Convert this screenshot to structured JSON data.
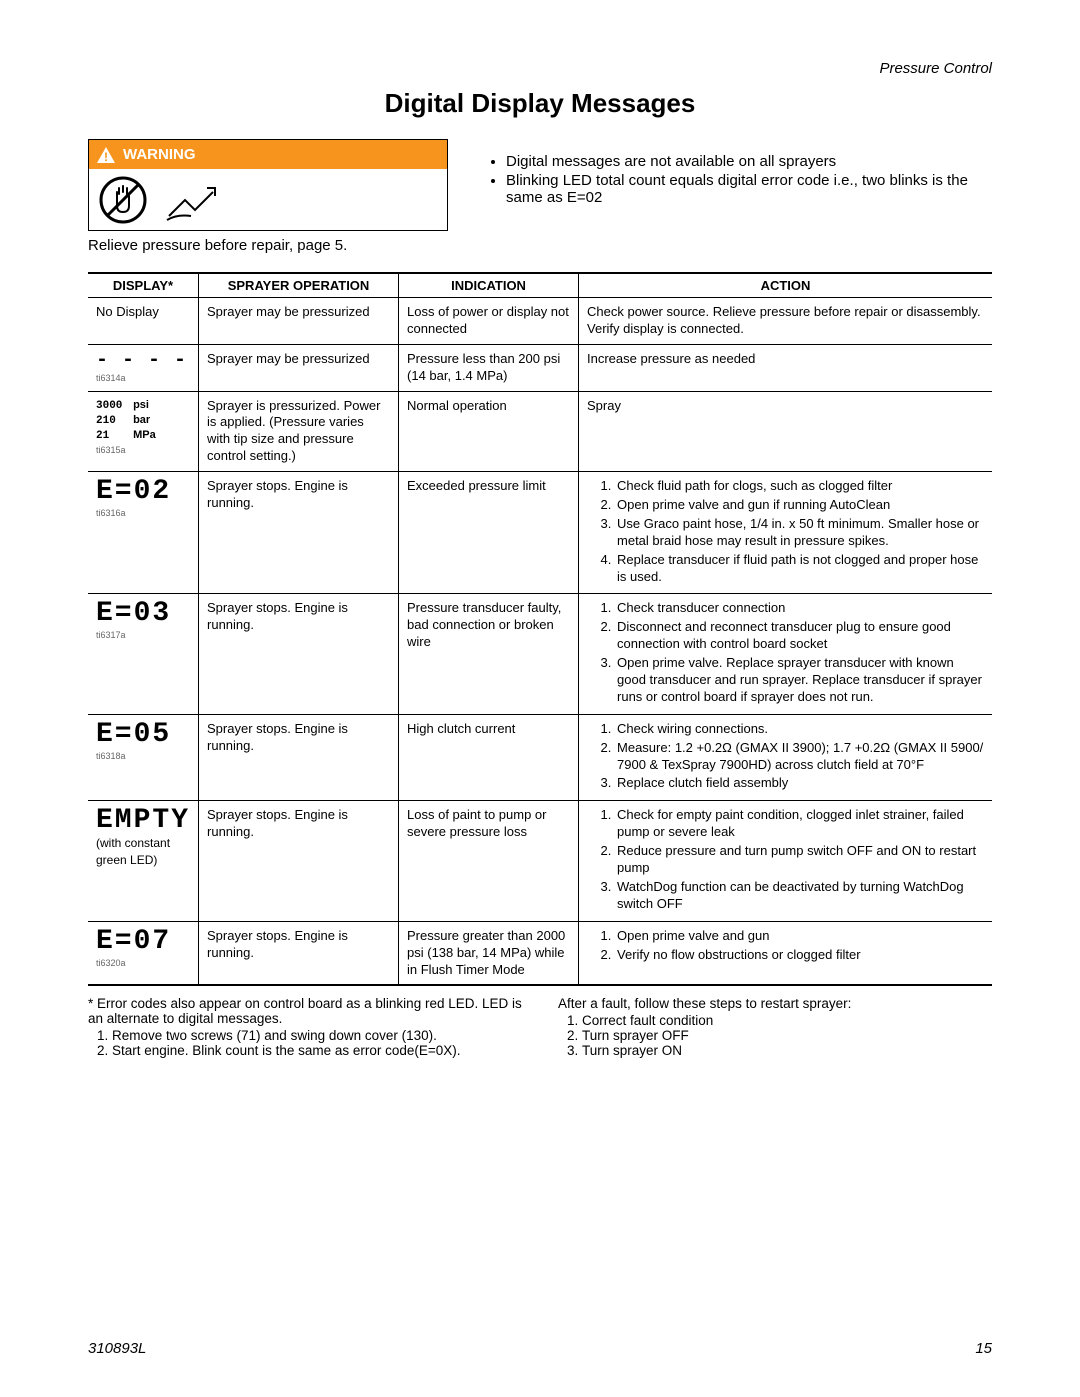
{
  "header": {
    "section": "Pressure Control",
    "title": "Digital Display Messages"
  },
  "warning": {
    "label": "WARNING",
    "caption": "Relieve pressure before repair, page 5."
  },
  "bullets": [
    "Digital messages are not available on all sprayers",
    "Blinking LED total count equals digital error code i.e., two blinks is the same as E=02"
  ],
  "table": {
    "headers": [
      "DISPLAY*",
      "SPRAYER OPERATION",
      "INDICATION",
      "ACTION"
    ],
    "rows": [
      {
        "display_text": "No Display",
        "operation": "Sprayer may be pressurized",
        "indication": "Loss of power or display not connected",
        "action_text": "Check power source. Relieve pressure before repair or disassembly. Verify display is connected."
      },
      {
        "display_seg": "- - - -",
        "display_ref": "ti6314a",
        "operation": "Sprayer may be pressurized",
        "indication": "Pressure less than 200 psi (14 bar, 1.4 MPa)",
        "action_text": "Increase pressure as needed"
      },
      {
        "display_psi": {
          "v1": "3000",
          "u1": "psi",
          "v2": "210",
          "u2": "bar",
          "v3": "21",
          "u3": "MPa"
        },
        "display_ref": "ti6315a",
        "operation": "Sprayer is pressurized. Power is applied. (Pressure varies with tip size and pressure control setting.)",
        "indication": "Normal operation",
        "action_text": "Spray"
      },
      {
        "display_seg": "E=02",
        "display_ref": "ti6316a",
        "operation": "Sprayer stops. Engine is running.",
        "indication": "Exceeded pressure limit",
        "action_list": [
          "Check fluid path for clogs, such as clogged filter",
          "Open prime valve and gun if running AutoClean",
          "Use Graco paint hose, 1/4 in. x 50 ft minimum. Smaller hose or metal braid hose may result in pressure spikes.",
          "Replace transducer if fluid path is not clogged and proper hose is used."
        ]
      },
      {
        "display_seg": "E=03",
        "display_ref": "ti6317a",
        "operation": "Sprayer stops. Engine is running.",
        "indication": "Pressure transducer faulty, bad connection or broken wire",
        "action_list": [
          "Check transducer connection",
          "Disconnect and reconnect transducer plug to ensure good connection with control board socket",
          "Open prime valve. Replace sprayer transducer with known good transducer and run sprayer. Replace transducer if sprayer runs or control board if sprayer does not run."
        ]
      },
      {
        "display_seg": "E=05",
        "display_ref": "ti6318a",
        "operation": "Sprayer stops. Engine is running.",
        "indication": "High clutch current",
        "action_list": [
          "Check wiring connections.",
          "Measure: 1.2 +0.2Ω (GMAX II 3900); 1.7 +0.2Ω (GMAX II 5900/ 7900 & TexSpray 7900HD) across clutch field at 70°F",
          "Replace clutch field assembly"
        ]
      },
      {
        "display_seg": "EMPTY",
        "display_sub": "(with constant green LED)",
        "operation": "Sprayer stops. Engine is running.",
        "indication": "Loss of paint to pump or severe pressure loss",
        "action_list": [
          "Check for empty paint condition, clogged inlet strainer, failed pump or severe leak",
          "Reduce pressure and turn pump switch OFF and ON to restart pump",
          "WatchDog function can be deactivated by turning WatchDog switch OFF"
        ]
      },
      {
        "display_seg": "E=07",
        "display_ref": "ti6320a",
        "operation": "Sprayer stops. Engine is running.",
        "indication": "Pressure greater than 2000 psi (138 bar, 14 MPa) while in Flush Timer Mode",
        "action_list": [
          "Open prime valve and gun",
          "Verify no flow obstructions or clogged filter"
        ]
      }
    ]
  },
  "footnotes": {
    "left_intro": "* Error codes also appear on control board as a blinking red LED. LED is an alternate to digital messages.",
    "left_list": [
      "Remove two screws (71) and swing down cover (130).",
      "Start engine. Blink count is the same as error code(E=0X)."
    ],
    "right_intro": "After a fault, follow these steps to restart sprayer:",
    "right_list": [
      "Correct fault condition",
      "Turn sprayer OFF",
      "Turn sprayer ON"
    ]
  },
  "footer": {
    "doc": "310893L",
    "page": "15"
  }
}
